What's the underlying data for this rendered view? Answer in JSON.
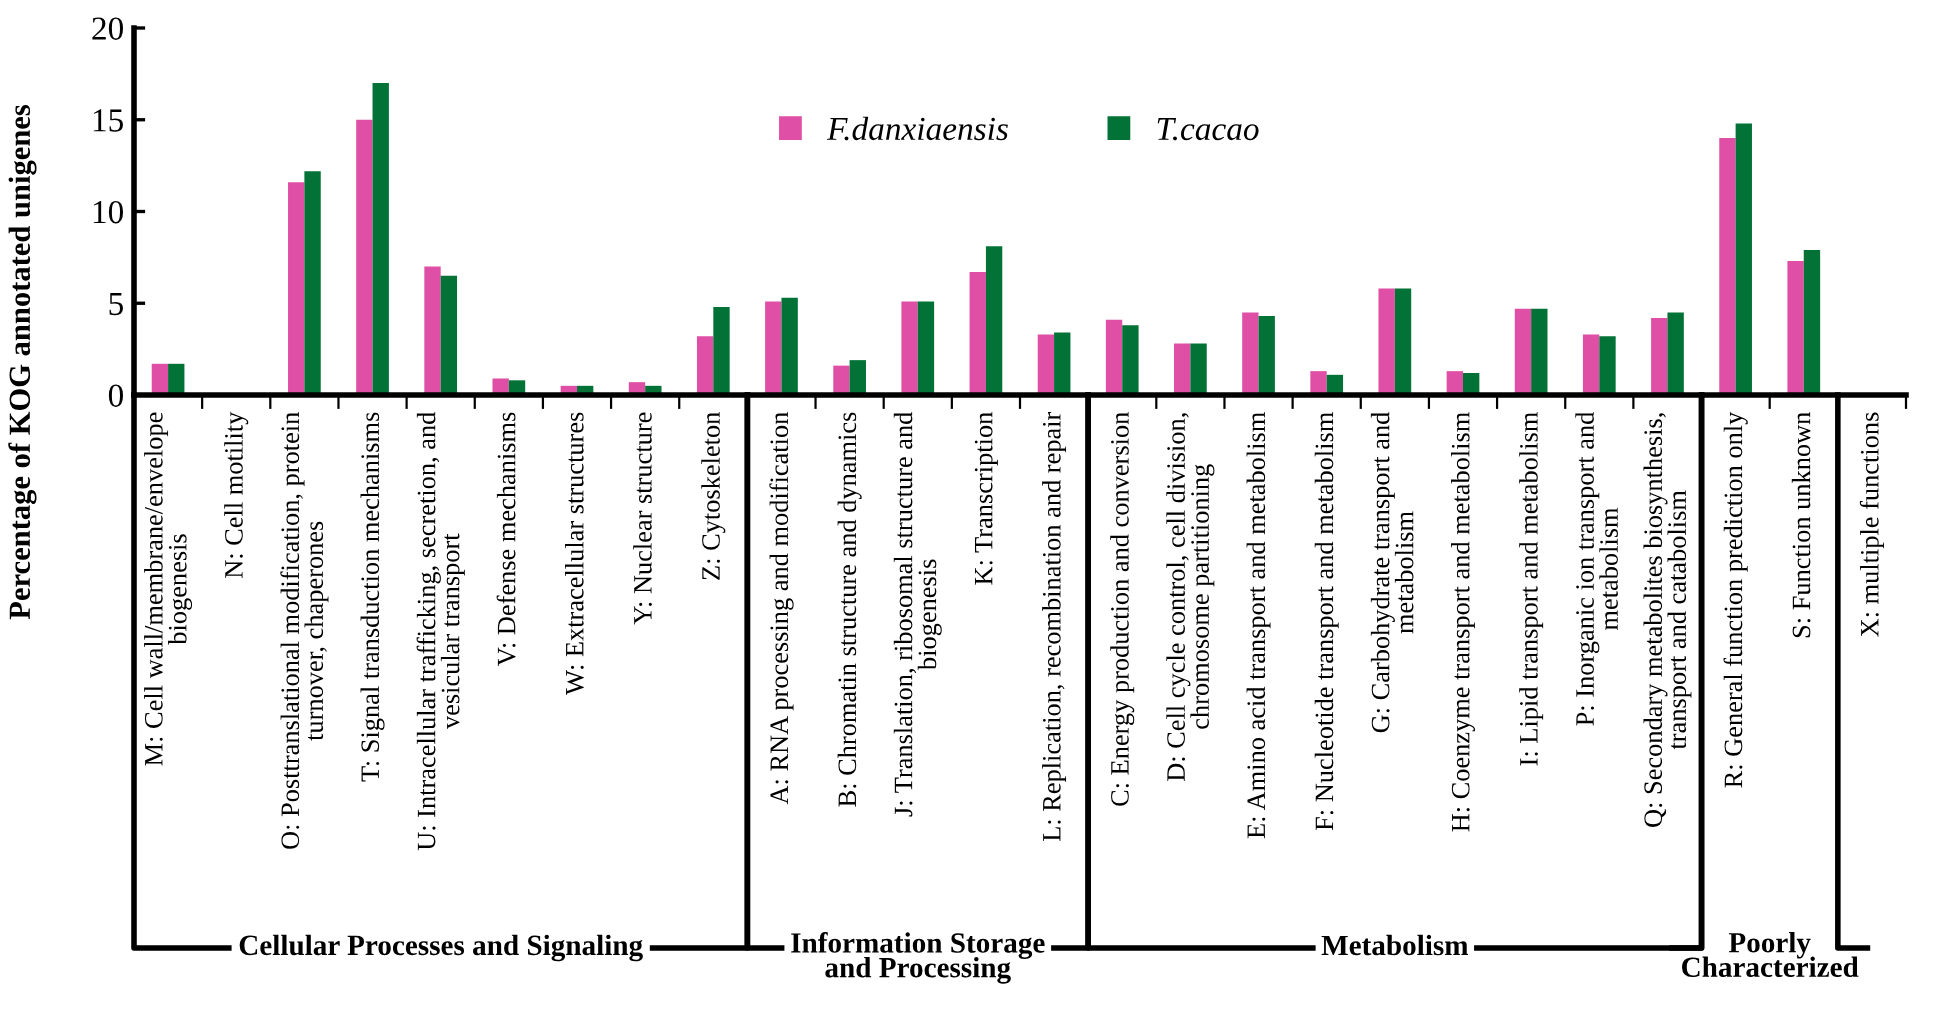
{
  "chart_data": {
    "type": "bar",
    "ylabel": "Percentage of KOG annotated unigenes",
    "categories": [
      "M: Cell wall/membrane/envelope\nbiogenesis",
      "N: Cell motility",
      "O: Posttranslational modification, protein\nturnover, chaperones",
      "T: Signal transduction mechanisms",
      "U: Intracellular trafficking, secretion, and\nvesicular transport",
      "V: Defense mechanisms",
      "W: Extracellular structures",
      "Y: Nuclear structure",
      "Z: Cytoskeleton",
      "A: RNA processing and modification",
      "B: Chromatin structure and dynamics",
      "J: Translation, ribosomal structure and\nbiogenesis",
      "K: Transcription",
      "L: Replication, recombination and repair",
      "C: Energy production and conversion",
      "D: Cell cycle control, cell division,\nchromosome partitioning",
      "E: Amino acid transport and metabolism",
      "F: Nucleotide transport and metabolism",
      "G: Carbohydrate transport and\nmetabolism",
      "H: Coenzyme transport and metabolism",
      "I: Lipid transport and metabolism",
      "P: Inorganic ion transport and\nmetabolism",
      "Q: Secondary metabolites biosynthesis,\ntransport and catabolism",
      "R: General function prediction only",
      "S: Function unknown",
      "X: multiple functions"
    ],
    "series": [
      {
        "name": "F.danxiaensis",
        "color": "#e04fa6",
        "values": [
          1.7,
          0,
          11.6,
          15.0,
          7.0,
          0.9,
          0.5,
          0.7,
          3.2,
          5.1,
          1.6,
          5.1,
          6.7,
          3.3,
          4.1,
          2.8,
          4.5,
          1.3,
          5.8,
          1.3,
          4.7,
          3.3,
          4.2,
          14.0,
          7.3,
          0
        ]
      },
      {
        "name": "T.cacao",
        "color": "#037236",
        "values": [
          1.7,
          0,
          12.2,
          17.0,
          6.5,
          0.8,
          0.5,
          0.5,
          4.8,
          5.3,
          1.9,
          5.1,
          8.1,
          3.4,
          3.8,
          2.8,
          4.3,
          1.1,
          5.8,
          1.2,
          4.7,
          3.2,
          4.5,
          14.8,
          7.9,
          0
        ]
      }
    ],
    "ylim": [
      0,
      20
    ],
    "yticks": [
      0,
      5,
      10,
      15,
      20
    ],
    "grid": false,
    "legend": "top",
    "annotations": [
      "Cellular Processes and Signaling",
      "Information Storage\nand Processing",
      "Metabolism",
      "Poorly\nCharacterized"
    ]
  }
}
